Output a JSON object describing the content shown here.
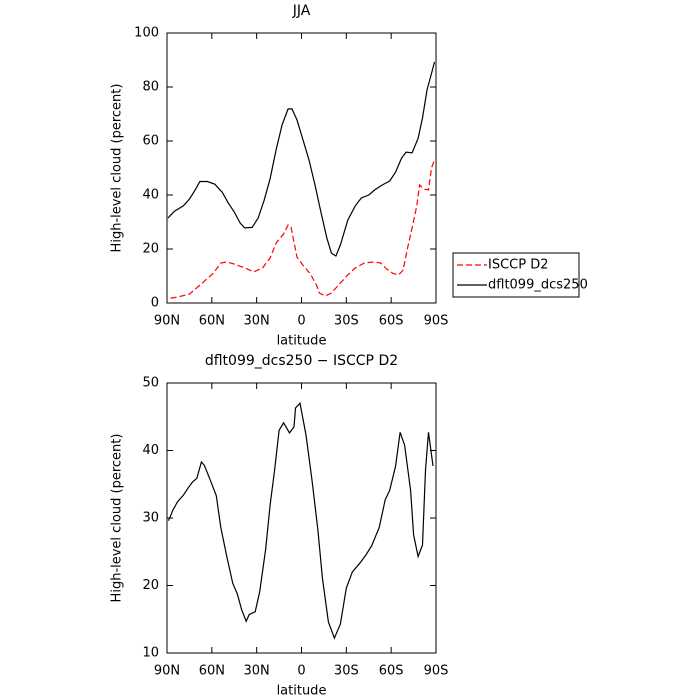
{
  "chart_data": [
    {
      "type": "line",
      "title": "JJA",
      "xlabel": "latitude",
      "ylabel": "High-level cloud (percent)",
      "xlim": [
        90,
        -90
      ],
      "xticks": [
        {
          "value": 90,
          "label": "90N"
        },
        {
          "value": 60,
          "label": "60N"
        },
        {
          "value": 30,
          "label": "30N"
        },
        0,
        {
          "value": -30,
          "label": "30S"
        },
        {
          "value": -60,
          "label": "60S"
        },
        {
          "value": -90,
          "label": "90S"
        }
      ],
      "ylim": [
        0,
        100
      ],
      "yticks": [
        0,
        20,
        40,
        60,
        80,
        100
      ],
      "legend": "right",
      "series": [
        {
          "name": "ISCCP D2",
          "color": "#ff0000",
          "line_style": "dashed",
          "x": [
            87.6,
            83,
            75,
            71,
            65,
            59,
            54,
            50,
            45,
            38,
            32,
            26,
            21,
            17,
            12,
            9,
            7,
            3,
            -1,
            -6,
            -10,
            -12,
            -16,
            -20,
            -26,
            -31,
            -36,
            -42,
            -48,
            -53,
            -57,
            -61,
            -65,
            -68,
            -71,
            -74,
            -77,
            -79,
            -82,
            -85,
            -87,
            -89
          ],
          "values": [
            1.8,
            2.2,
            3.3,
            5.2,
            8.1,
            11,
            14.8,
            15.2,
            14.4,
            13,
            11.5,
            13,
            16.7,
            22.2,
            25.6,
            28.9,
            28.1,
            17,
            14,
            10.7,
            6.7,
            3.7,
            2.6,
            3.7,
            7.4,
            10.4,
            13,
            14.8,
            15.2,
            14.8,
            12.6,
            11,
            10.4,
            12.2,
            20.4,
            27.8,
            35.6,
            43.7,
            42.2,
            41.9,
            50,
            53
          ]
        },
        {
          "name": "dflt099_dcs250",
          "color": "#000000",
          "line_style": "solid",
          "x": [
            89.3,
            85,
            79,
            75,
            71,
            68,
            63,
            58,
            53,
            49,
            45,
            41,
            38,
            33,
            29,
            25,
            21,
            17,
            13,
            9,
            6.4,
            3,
            -1,
            -5,
            -9,
            -13,
            -17,
            -20,
            -23,
            -26,
            -31,
            -36,
            -40,
            -45,
            -49,
            -54,
            -59,
            -63,
            -67,
            -70,
            -74,
            -78,
            -81,
            -84,
            -87,
            -89
          ],
          "values": [
            31.5,
            34,
            36,
            38.5,
            42,
            45,
            45,
            44,
            41,
            37,
            33.7,
            29.6,
            27.8,
            28,
            31.5,
            38,
            46,
            56.7,
            66,
            71.9,
            71.9,
            67.8,
            60.4,
            53,
            43.7,
            33.7,
            24,
            18.5,
            17.4,
            21.5,
            30.7,
            36,
            38.9,
            40,
            41.9,
            43.7,
            45.2,
            48.5,
            53.7,
            55.9,
            55.6,
            61,
            68.5,
            78.9,
            85,
            89.3
          ]
        }
      ]
    },
    {
      "type": "line",
      "title": "dflt099_dcs250 − ISCCP D2",
      "xlabel": "latitude",
      "ylabel": "High-level cloud (percent)",
      "xlim": [
        90,
        -90
      ],
      "xticks": [
        {
          "value": 90,
          "label": "90N"
        },
        {
          "value": 60,
          "label": "60N"
        },
        {
          "value": 30,
          "label": "30N"
        },
        0,
        {
          "value": -30,
          "label": "30S"
        },
        {
          "value": -60,
          "label": "60S"
        },
        {
          "value": -90,
          "label": "90S"
        }
      ],
      "ylim": [
        10,
        50
      ],
      "yticks": [
        10,
        20,
        30,
        40,
        50
      ],
      "series": [
        {
          "color": "#000000",
          "line_style": "solid",
          "x": [
            89,
            86,
            83,
            79,
            76,
            73,
            70,
            67,
            65,
            61,
            57,
            54,
            50,
            46,
            43,
            40,
            37,
            35,
            31,
            28,
            24,
            21,
            18,
            15,
            12,
            8,
            5,
            4,
            1,
            -3,
            -7,
            -11,
            -14,
            -18,
            -22,
            -26,
            -30,
            -34,
            -39,
            -43,
            -47,
            -52,
            -56,
            -59,
            -63,
            -66,
            -69,
            -73,
            -75,
            -78,
            -81,
            -83,
            -85,
            -88
          ],
          "values": [
            29.6,
            31.2,
            32.4,
            33.4,
            34.4,
            35.3,
            35.9,
            38.3,
            37.8,
            35.6,
            33.3,
            28.6,
            24.3,
            20.3,
            18.8,
            16.4,
            14.7,
            15.7,
            16.1,
            19.1,
            25.3,
            31.9,
            37.1,
            43,
            44.1,
            42.6,
            43.5,
            46.3,
            47,
            42.3,
            35.6,
            28.2,
            21.1,
            14.6,
            12.2,
            14.3,
            19.6,
            22,
            23.3,
            24.5,
            25.9,
            28.6,
            32.7,
            34.1,
            37.7,
            42.7,
            40.8,
            34.1,
            27.5,
            24.3,
            26,
            37.1,
            42.7,
            37.7
          ]
        }
      ]
    }
  ]
}
